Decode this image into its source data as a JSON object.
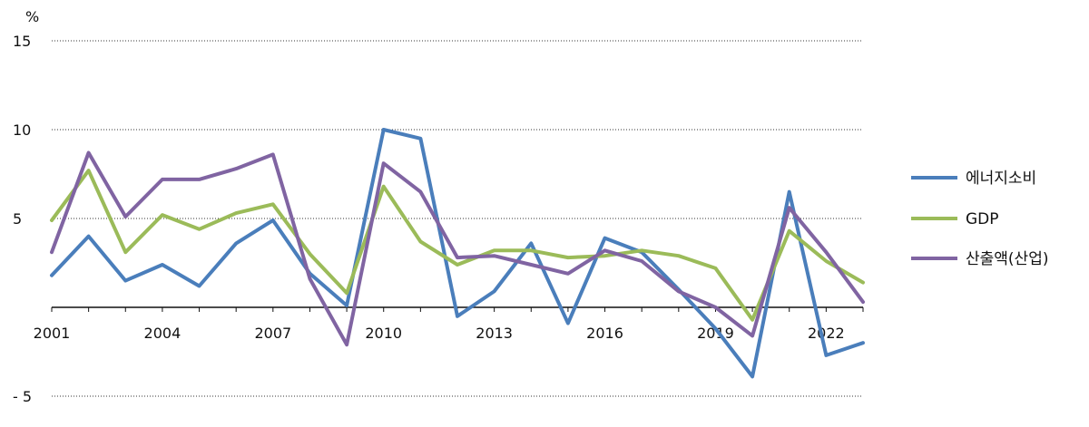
{
  "chart_data": {
    "type": "line",
    "unit_label": "%",
    "ylim": [
      -5,
      15
    ],
    "y_ticks": [
      15,
      10,
      5,
      -5
    ],
    "y_tick_labels": [
      "15",
      "10",
      "5",
      "- 5"
    ],
    "x": [
      2001,
      2002,
      2003,
      2004,
      2005,
      2006,
      2007,
      2008,
      2009,
      2010,
      2011,
      2012,
      2013,
      2014,
      2015,
      2016,
      2017,
      2018,
      2019,
      2020,
      2021,
      2022,
      2023
    ],
    "x_tick_labels": [
      "2001",
      "2004",
      "2007",
      "2010",
      "2013",
      "2016",
      "2019",
      "2022"
    ],
    "grid": "dotted horizontal",
    "legend_position": "right",
    "series": [
      {
        "name": "에너지소비",
        "color": "#4a7ebb",
        "values": [
          1.8,
          4.0,
          1.5,
          2.4,
          1.2,
          3.6,
          4.9,
          1.9,
          0.1,
          10.0,
          9.5,
          -0.5,
          0.9,
          3.6,
          -0.9,
          3.9,
          3.1,
          1.0,
          -1.2,
          -3.9,
          6.5,
          -2.7,
          -2.0
        ]
      },
      {
        "name": "GDP",
        "color": "#9bbb59",
        "values": [
          4.9,
          7.7,
          3.1,
          5.2,
          4.4,
          5.3,
          5.8,
          3.0,
          0.8,
          6.8,
          3.7,
          2.4,
          3.2,
          3.2,
          2.8,
          2.9,
          3.2,
          2.9,
          2.2,
          -0.7,
          4.3,
          2.6,
          1.4
        ]
      },
      {
        "name": "산출액(산업)",
        "color": "#8064a2",
        "values": [
          3.1,
          8.7,
          5.1,
          7.2,
          7.2,
          7.8,
          8.6,
          1.6,
          -2.1,
          8.1,
          6.5,
          2.8,
          2.9,
          2.4,
          1.9,
          3.2,
          2.6,
          0.9,
          0.0,
          -1.6,
          5.6,
          3.1,
          0.3
        ]
      }
    ]
  }
}
